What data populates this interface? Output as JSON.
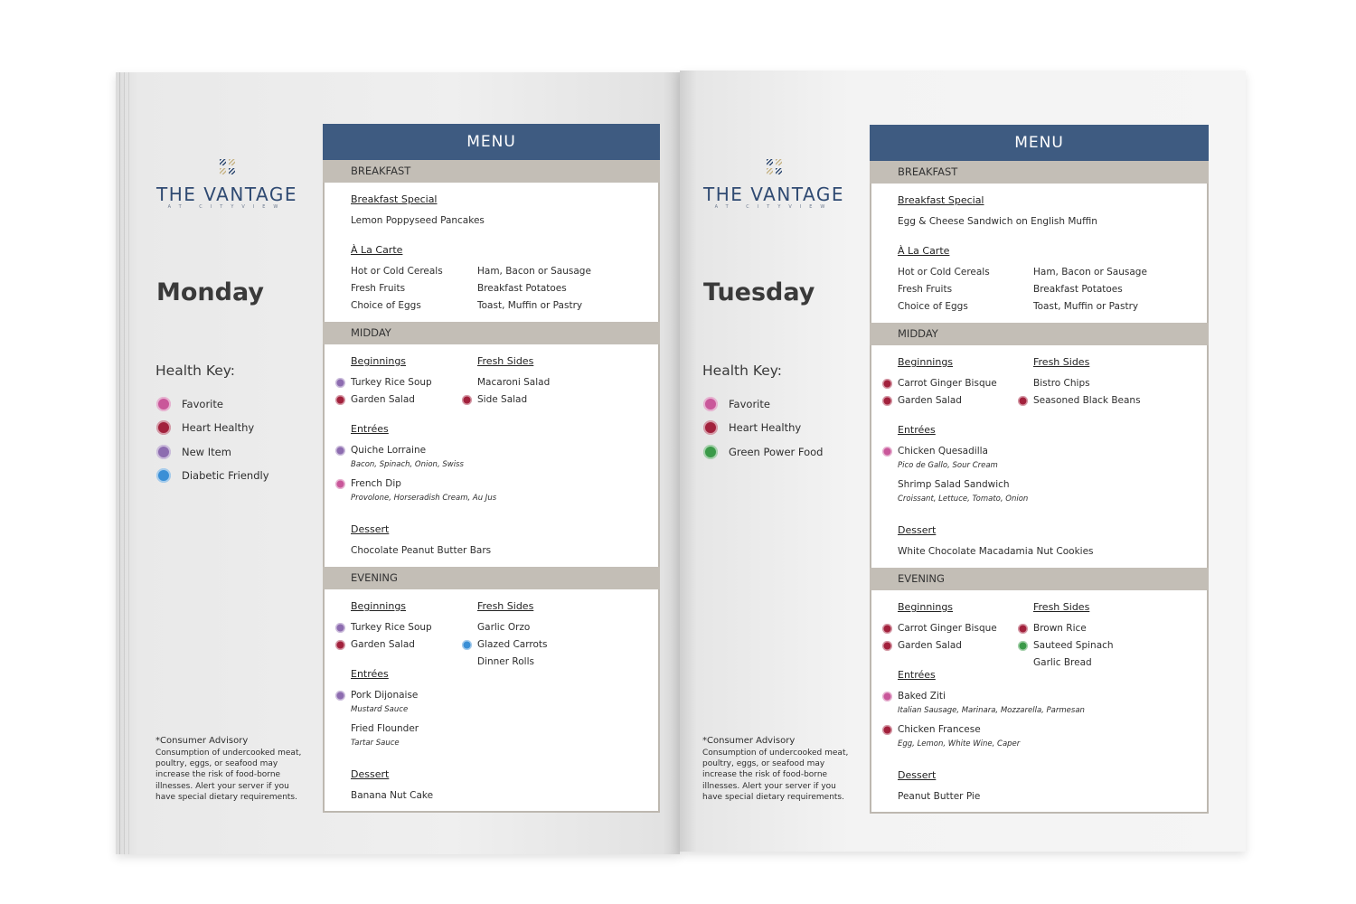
{
  "pages": [
    {
      "logo": {
        "name": "THE VANTAGE",
        "sub": "AT CITYVIEW"
      },
      "day": "Monday",
      "health_key": {
        "title": "Health Key:",
        "items": [
          {
            "label": "Favorite",
            "color": "#c9579a"
          },
          {
            "label": "Heart Healthy",
            "color": "#a2213c"
          },
          {
            "label": "New Item",
            "color": "#8d6cb0"
          },
          {
            "label": "Diabetic Friendly",
            "color": "#3a8fd6"
          }
        ]
      },
      "advisory": {
        "title": "*Consumer Advisory",
        "text": "Consumption of undercooked meat, poultry, eggs, or seafood may increase the risk of food-borne illnesses. Alert your server if you have special dietary requirements."
      },
      "menu": {
        "title": "MENU",
        "sections": [
          {
            "name": "BREAKFAST",
            "columns": [
              [
                {
                  "title": "Breakfast Special",
                  "items": [
                    {
                      "name": "Lemon Poppyseed Pancakes"
                    }
                  ]
                },
                {
                  "title": "À La Carte",
                  "items": [
                    {
                      "name": "Hot or Cold Cereals"
                    },
                    {
                      "name": "Fresh Fruits"
                    },
                    {
                      "name": "Choice of Eggs"
                    }
                  ],
                  "items_right": [
                    {
                      "name": "Ham, Bacon or Sausage"
                    },
                    {
                      "name": "Breakfast Potatoes"
                    },
                    {
                      "name": "Toast, Muffin or Pastry"
                    }
                  ]
                }
              ]
            ]
          },
          {
            "name": "MIDDAY",
            "columns": [
              [
                {
                  "title": "Beginnings",
                  "items": [
                    {
                      "name": "Turkey Rice Soup",
                      "icon_color": "#8d6cb0"
                    },
                    {
                      "name": "Garden Salad",
                      "icon_color": "#a2213c"
                    }
                  ]
                },
                {
                  "title": "Entrées",
                  "items": [
                    {
                      "name": "Quiche Lorraine",
                      "note": "Bacon, Spinach, Onion, Swiss",
                      "icon_color": "#8d6cb0"
                    },
                    {
                      "name": "French Dip",
                      "note": "Provolone, Horseradish Cream, Au Jus",
                      "icon_color": "#c9579a"
                    }
                  ]
                },
                {
                  "title": "Dessert",
                  "items": [
                    {
                      "name": "Chocolate Peanut Butter Bars"
                    }
                  ]
                }
              ],
              [
                {
                  "title": "Fresh Sides",
                  "items": [
                    {
                      "name": "Macaroni Salad"
                    },
                    {
                      "name": "Side Salad",
                      "icon_color": "#a2213c"
                    }
                  ]
                }
              ]
            ]
          },
          {
            "name": "EVENING",
            "columns": [
              [
                {
                  "title": "Beginnings",
                  "items": [
                    {
                      "name": "Turkey Rice Soup",
                      "icon_color": "#8d6cb0"
                    },
                    {
                      "name": "Garden Salad",
                      "icon_color": "#a2213c"
                    }
                  ]
                },
                {
                  "title": "Entrées",
                  "items": [
                    {
                      "name": "Pork Dijonaise",
                      "note": "Mustard Sauce",
                      "icon_color": "#8d6cb0"
                    },
                    {
                      "name": "Fried Flounder",
                      "note": "Tartar Sauce"
                    }
                  ]
                },
                {
                  "title": "Dessert",
                  "items": [
                    {
                      "name": "Banana Nut Cake"
                    }
                  ]
                }
              ],
              [
                {
                  "title": "Fresh Sides",
                  "items": [
                    {
                      "name": "Garlic Orzo"
                    },
                    {
                      "name": "Glazed Carrots",
                      "icon_color": "#3a8fd6"
                    },
                    {
                      "name": "Dinner Rolls"
                    }
                  ]
                }
              ]
            ]
          }
        ]
      }
    },
    {
      "logo": {
        "name": "THE VANTAGE",
        "sub": "AT CITYVIEW"
      },
      "day": "Tuesday",
      "health_key": {
        "title": "Health Key:",
        "items": [
          {
            "label": "Favorite",
            "color": "#c9579a"
          },
          {
            "label": "Heart Healthy",
            "color": "#a2213c"
          },
          {
            "label": "Green Power Food",
            "color": "#3a9a48"
          }
        ]
      },
      "advisory": {
        "title": "*Consumer Advisory",
        "text": "Consumption of undercooked meat, poultry, eggs, or seafood may increase the risk of food-borne illnesses. Alert your server if you have special dietary requirements."
      },
      "menu": {
        "title": "MENU",
        "sections": [
          {
            "name": "BREAKFAST",
            "columns": [
              [
                {
                  "title": "Breakfast Special",
                  "items": [
                    {
                      "name": "Egg & Cheese Sandwich on English Muffin"
                    }
                  ]
                },
                {
                  "title": "À La Carte",
                  "items": [
                    {
                      "name": "Hot or Cold Cereals"
                    },
                    {
                      "name": "Fresh Fruits"
                    },
                    {
                      "name": "Choice of Eggs"
                    }
                  ],
                  "items_right": [
                    {
                      "name": "Ham, Bacon or Sausage"
                    },
                    {
                      "name": "Breakfast Potatoes"
                    },
                    {
                      "name": "Toast, Muffin or Pastry"
                    }
                  ]
                }
              ]
            ]
          },
          {
            "name": "MIDDAY",
            "columns": [
              [
                {
                  "title": "Beginnings",
                  "items": [
                    {
                      "name": "Carrot Ginger Bisque",
                      "icon_color": "#a2213c"
                    },
                    {
                      "name": "Garden Salad",
                      "icon_color": "#a2213c"
                    }
                  ]
                },
                {
                  "title": "Entrées",
                  "items": [
                    {
                      "name": "Chicken Quesadilla",
                      "note": "Pico de Gallo, Sour Cream",
                      "icon_color": "#c9579a"
                    },
                    {
                      "name": "Shrimp Salad Sandwich",
                      "note": "Croissant, Lettuce, Tomato, Onion"
                    }
                  ]
                },
                {
                  "title": "Dessert",
                  "items": [
                    {
                      "name": "White Chocolate Macadamia Nut Cookies"
                    }
                  ]
                }
              ],
              [
                {
                  "title": "Fresh Sides",
                  "items": [
                    {
                      "name": "Bistro Chips"
                    },
                    {
                      "name": "Seasoned Black Beans",
                      "icon_color": "#a2213c"
                    }
                  ]
                }
              ]
            ]
          },
          {
            "name": "EVENING",
            "columns": [
              [
                {
                  "title": "Beginnings",
                  "items": [
                    {
                      "name": "Carrot Ginger Bisque",
                      "icon_color": "#a2213c"
                    },
                    {
                      "name": "Garden Salad",
                      "icon_color": "#a2213c"
                    }
                  ]
                },
                {
                  "title": "Entrées",
                  "items": [
                    {
                      "name": "Baked Ziti",
                      "note": "Italian Sausage, Marinara, Mozzarella, Parmesan",
                      "icon_color": "#c9579a"
                    },
                    {
                      "name": "Chicken Francese",
                      "note": "Egg, Lemon, White Wine, Caper",
                      "icon_color": "#a2213c"
                    }
                  ]
                },
                {
                  "title": "Dessert",
                  "items": [
                    {
                      "name": "Peanut Butter Pie"
                    }
                  ]
                }
              ],
              [
                {
                  "title": "Fresh Sides",
                  "items": [
                    {
                      "name": "Brown Rice",
                      "icon_color": "#a2213c"
                    },
                    {
                      "name": "Sauteed Spinach",
                      "icon_color": "#3a9a48"
                    },
                    {
                      "name": "Garlic Bread"
                    }
                  ]
                }
              ]
            ]
          }
        ]
      }
    }
  ]
}
